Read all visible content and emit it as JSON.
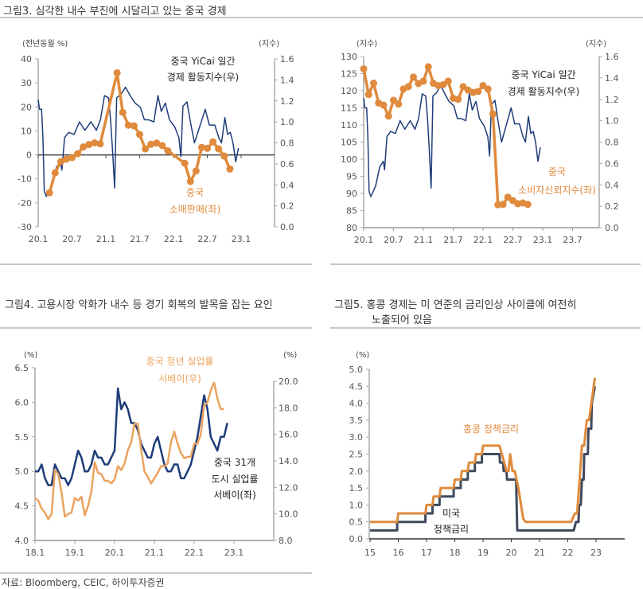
{
  "figures": {
    "fig3_title": "그림3.  심각한 내수 부진에 시달리고 있는 중국 경제",
    "fig4_title": "그림4.  고용시장 악화가 내수 등 경기 회복의 발목을 잡는 요인",
    "fig5_title_line1": "그림5.  홍콩 경제는 미 연준의 금리인상 사이클에 여전히",
    "fig5_title_line2": "노출되어 있음"
  },
  "source": "자료: Bloomberg, CEIC, 하이투자증권",
  "colors": {
    "blue": "#1f3d7a",
    "orange": "#e08a3c",
    "light_orange": "#eba35f",
    "slate": "#3e4a5c",
    "axis": "#999999"
  },
  "chart_data": [
    {
      "type": "line",
      "left_unit": "(전년동월 %)",
      "right_unit": "(지수)",
      "ylim_left": [
        -30,
        40
      ],
      "ylim_right": [
        0,
        1.6
      ],
      "yticks_left": [
        "40",
        "30",
        "20",
        "10",
        "0",
        "-10",
        "-20",
        "-30"
      ],
      "yticks_right": [
        "1.6",
        "1.4",
        "1.2",
        "1.0",
        "0.8",
        "0.6",
        "0.4",
        "0.2",
        "0.0"
      ],
      "xticks": [
        "20.1",
        "20.7",
        "21.1",
        "21.7",
        "22.1",
        "22.7",
        "23.1"
      ],
      "annotations": {
        "blue_1": "중국 YiCai 일간",
        "blue_2": "경제 활동지수(우)",
        "orange_1": "중국",
        "orange_2": "소매판매(좌)"
      },
      "series": [
        {
          "name": "중국 YiCai 일간 경제 활동지수(우)",
          "axis": "right",
          "color": "#1f3d7a",
          "x": [
            20.0,
            20.02,
            20.05,
            20.07,
            20.09,
            20.12,
            20.2,
            20.27,
            20.33,
            20.35,
            20.39,
            20.45,
            20.53,
            20.61,
            20.69,
            20.78,
            20.86,
            20.92,
            20.98,
            21.04,
            21.07,
            21.1,
            21.13,
            21.16,
            21.22,
            21.29,
            21.37,
            21.43,
            21.51,
            21.57,
            21.63,
            21.71,
            21.77,
            21.82,
            21.88,
            21.94,
            22.02,
            22.08,
            22.11,
            22.14,
            22.2,
            22.25,
            22.31,
            22.37,
            22.47,
            22.53,
            22.61,
            22.67,
            22.71,
            22.76,
            22.8,
            22.84,
            22.88,
            22.92,
            22.96
          ],
          "values": [
            1.21,
            1.12,
            1.12,
            0.85,
            0.34,
            0.29,
            0.39,
            0.57,
            0.62,
            0.54,
            0.85,
            0.9,
            0.88,
            1.0,
            0.92,
            1.0,
            0.92,
            1.02,
            1.25,
            1.23,
            1.02,
            0.72,
            0.37,
            1.23,
            1.26,
            1.33,
            1.24,
            1.18,
            1.14,
            1.02,
            1.02,
            1.0,
            1.25,
            1.1,
            1.18,
            1.02,
            0.95,
            0.85,
            0.67,
            1.15,
            1.19,
            1.0,
            0.8,
            0.92,
            1.12,
            0.97,
            0.97,
            0.85,
            0.8,
            1.04,
            0.88,
            0.9,
            0.8,
            0.62,
            0.75
          ]
        },
        {
          "name": "중국 소매판매(좌)",
          "axis": "left",
          "color": "#e08a3c",
          "markers": true,
          "x": [
            "20.3",
            "20.4",
            "20.5",
            "20.6",
            "20.7",
            "20.8",
            "20.9",
            "20.10",
            "20.11",
            "20.12",
            "21.3",
            "21.4",
            "21.5",
            "21.6",
            "21.7",
            "21.8",
            "21.9",
            "21.10",
            "21.11",
            "21.12",
            "22.3",
            "22.4",
            "22.5",
            "22.6",
            "22.7",
            "22.8",
            "22.9",
            "22.10",
            "22.11"
          ],
          "values": [
            -15.8,
            -7.5,
            -2.8,
            -1.8,
            -1.1,
            0.5,
            3.3,
            4.3,
            5.0,
            4.6,
            34.2,
            17.7,
            12.4,
            12.1,
            8.5,
            2.5,
            4.4,
            4.9,
            3.9,
            1.7,
            -3.5,
            -11.1,
            -6.7,
            3.1,
            2.7,
            5.4,
            2.5,
            -0.5,
            -5.9
          ]
        }
      ]
    },
    {
      "type": "line",
      "left_unit": "(지수)",
      "right_unit": "(지수)",
      "ylim_left": [
        80,
        130
      ],
      "ylim_right": [
        0,
        1.6
      ],
      "yticks_left": [
        "130",
        "125",
        "120",
        "115",
        "110",
        "105",
        "100",
        "95",
        "90",
        "85",
        "80"
      ],
      "yticks_right": [
        "1.6",
        "1.4",
        "1.2",
        "1.0",
        "0.8",
        "0.6",
        "0.4",
        "0.2",
        "0.0"
      ],
      "xticks": [
        "20.1",
        "20.7",
        "21.1",
        "21.7",
        "22.1",
        "22.7",
        "23.1",
        "23.7"
      ],
      "annotations": {
        "blue_1": "중국 YiCai 일간",
        "blue_2": "경제 활동지수(우)",
        "orange_1": "중국",
        "orange_2": "소비자신뢰지수(좌)"
      },
      "series": [
        {
          "name": "중국 YiCai 일간 경제 활동지수(우)",
          "axis": "right",
          "color": "#1f3d7a",
          "x": [
            20.0,
            20.02,
            20.05,
            20.07,
            20.09,
            20.12,
            20.2,
            20.27,
            20.33,
            20.35,
            20.39,
            20.45,
            20.53,
            20.61,
            20.69,
            20.78,
            20.86,
            20.92,
            20.98,
            21.04,
            21.07,
            21.1,
            21.13,
            21.16,
            21.22,
            21.29,
            21.37,
            21.43,
            21.51,
            21.57,
            21.63,
            21.71,
            21.77,
            21.82,
            21.88,
            21.94,
            22.02,
            22.08,
            22.11,
            22.14,
            22.2,
            22.25,
            22.31,
            22.37,
            22.47,
            22.53,
            22.61,
            22.67,
            22.71,
            22.76,
            22.8,
            22.84,
            22.88,
            22.92,
            22.96
          ],
          "values": [
            1.21,
            1.12,
            1.12,
            0.85,
            0.34,
            0.29,
            0.39,
            0.57,
            0.62,
            0.54,
            0.85,
            0.9,
            0.88,
            1.0,
            0.92,
            1.0,
            0.92,
            1.02,
            1.25,
            1.23,
            1.02,
            0.72,
            0.37,
            1.23,
            1.26,
            1.33,
            1.24,
            1.18,
            1.14,
            1.02,
            1.02,
            1.0,
            1.25,
            1.1,
            1.18,
            1.02,
            0.95,
            0.85,
            0.67,
            1.15,
            1.19,
            1.0,
            0.8,
            0.92,
            1.12,
            0.97,
            0.97,
            0.85,
            0.8,
            1.04,
            0.88,
            0.9,
            0.8,
            0.62,
            0.75
          ]
        },
        {
          "name": "중국 소비자신뢰지수(좌)",
          "axis": "left",
          "color": "#e08a3c",
          "markers": true,
          "x_start": "20.1",
          "values": [
            126.4,
            118.9,
            122.2,
            116.4,
            115.8,
            112.6,
            117.2,
            116.1,
            120.5,
            121.2,
            124.0,
            122.1,
            122.8,
            127.0,
            122.2,
            121.5,
            121.8,
            122.8,
            117.8,
            117.5,
            121.2,
            120.2,
            119.5,
            119.8,
            121.5,
            120.5,
            113.2,
            86.7,
            86.8,
            88.9,
            87.9,
            87.0,
            87.2,
            86.8
          ]
        }
      ]
    },
    {
      "type": "line",
      "left_unit": "(%)",
      "right_unit": "(%)",
      "ylim_left": [
        4.0,
        6.5
      ],
      "ylim_right": [
        8.0,
        20.0
      ],
      "yticks_left": [
        "6.5",
        "6.0",
        "5.5",
        "5.0",
        "4.5",
        "4.0"
      ],
      "yticks_right": [
        "20.0",
        "18.0",
        "16.0",
        "14.0",
        "12.0",
        "10.0",
        "8.0"
      ],
      "xticks": [
        "18.1",
        "19.1",
        "20.1",
        "21.1",
        "22.1",
        "23.1"
      ],
      "annotations": {
        "orange_1": "중국 청년 실업률",
        "orange_2": "서베이(우)",
        "blue_1": "중국 31개",
        "blue_2": "도시 실업률",
        "blue_3": "서베이(좌)"
      },
      "series": [
        {
          "name": "중국 31개 도시 실업률 서베이(좌)",
          "axis": "left",
          "color": "#1f3d7a",
          "x_start": "18.1",
          "values": [
            5.0,
            5.0,
            5.1,
            4.9,
            4.8,
            4.8,
            5.1,
            5.0,
            4.9,
            4.9,
            4.8,
            4.9,
            5.1,
            5.3,
            5.2,
            5.0,
            5.0,
            5.1,
            5.3,
            5.2,
            5.2,
            5.1,
            5.1,
            5.2,
            5.3,
            6.2,
            5.9,
            6.0,
            5.9,
            5.7,
            5.7,
            5.6,
            5.4,
            5.3,
            5.2,
            5.2,
            5.4,
            5.5,
            5.3,
            5.1,
            5.0,
            5.0,
            5.1,
            5.1,
            4.9,
            4.9,
            5.0,
            5.1,
            5.3,
            5.5,
            5.8,
            6.1,
            5.9,
            5.5,
            5.4,
            5.3,
            5.5,
            5.5,
            5.7
          ]
        },
        {
          "name": "중국 청년 실업률 서베이(우)",
          "axis": "right",
          "color": "#eba35f",
          "x_start": "18.1",
          "values": [
            11.2,
            11.0,
            10.4,
            10.1,
            9.6,
            10.0,
            13.3,
            13.0,
            11.6,
            9.8,
            10.0,
            10.1,
            11.2,
            11.0,
            11.3,
            9.9,
            10.6,
            11.7,
            13.9,
            13.1,
            13.0,
            12.5,
            12.5,
            12.3,
            12.6,
            13.6,
            13.3,
            13.8,
            14.8,
            15.4,
            16.8,
            16.8,
            14.9,
            13.2,
            12.8,
            12.3,
            12.7,
            13.1,
            13.6,
            13.6,
            13.8,
            15.4,
            16.2,
            15.3,
            14.6,
            14.2,
            14.3,
            14.3,
            15.3,
            15.3,
            16.0,
            18.2,
            18.4,
            19.3,
            19.9,
            18.7,
            17.9,
            17.9
          ]
        }
      ]
    },
    {
      "type": "line",
      "left_unit": "(%)",
      "ylim_left": [
        0,
        5.0
      ],
      "yticks_left": [
        "5.0",
        "4.5",
        "4.0",
        "3.5",
        "3.0",
        "2.5",
        "2.0",
        "1.5",
        "1.0",
        "0.5",
        "0.0"
      ],
      "xticks": [
        "15",
        "16",
        "17",
        "18",
        "19",
        "20",
        "21",
        "22",
        "23"
      ],
      "annotations": {
        "orange_1": "홍콩 정책금리",
        "us_1": "미국",
        "us_2": "정책금리"
      },
      "series": [
        {
          "name": "미국 정책금리",
          "axis": "left",
          "color": "#3e4a5c",
          "x": [
            15,
            15.96,
            15.96,
            16.96,
            16.96,
            17.21,
            17.21,
            17.46,
            17.46,
            17.96,
            17.96,
            18.21,
            18.21,
            18.46,
            18.46,
            18.71,
            18.71,
            18.96,
            18.96,
            19.58,
            19.6,
            19.71,
            19.73,
            19.83,
            19.85,
            20.17,
            20.21,
            22.21,
            22.29,
            22.38,
            22.4,
            22.46,
            22.5,
            22.56,
            22.58,
            22.71,
            22.73,
            22.83,
            22.85,
            22.96
          ],
          "values": [
            0.25,
            0.25,
            0.5,
            0.5,
            0.75,
            0.75,
            1.0,
            1.0,
            1.25,
            1.25,
            1.5,
            1.5,
            1.75,
            1.75,
            2.0,
            2.0,
            2.25,
            2.25,
            2.5,
            2.5,
            2.25,
            2.25,
            2.0,
            2.0,
            1.75,
            1.75,
            0.25,
            0.25,
            0.5,
            0.5,
            1.0,
            1.0,
            1.75,
            1.75,
            2.5,
            2.5,
            3.25,
            3.25,
            4.0,
            4.5
          ]
        },
        {
          "name": "홍콩 정책금리",
          "axis": "left",
          "color": "#e08a3c",
          "x": [
            15,
            15.96,
            16.0,
            16.96,
            17.0,
            17.21,
            17.25,
            17.46,
            17.5,
            17.96,
            18.0,
            18.21,
            18.25,
            18.46,
            18.5,
            18.71,
            18.75,
            18.96,
            19.0,
            19.58,
            19.75,
            19.83,
            19.9,
            19.96,
            20.04,
            20.12,
            20.25,
            20.42,
            20.5,
            22.12,
            22.25,
            22.33,
            22.42,
            22.5,
            22.58,
            22.67,
            22.75,
            22.96
          ],
          "values": [
            0.5,
            0.5,
            0.75,
            0.75,
            1.0,
            1.0,
            1.25,
            1.25,
            1.5,
            1.5,
            1.75,
            1.75,
            2.0,
            2.0,
            2.25,
            2.25,
            2.5,
            2.5,
            2.75,
            2.75,
            2.25,
            2.0,
            2.0,
            2.5,
            2.0,
            2.0,
            1.5,
            0.6,
            0.5,
            0.5,
            0.75,
            0.75,
            1.75,
            2.75,
            2.75,
            3.5,
            3.5,
            4.75
          ]
        }
      ]
    }
  ]
}
